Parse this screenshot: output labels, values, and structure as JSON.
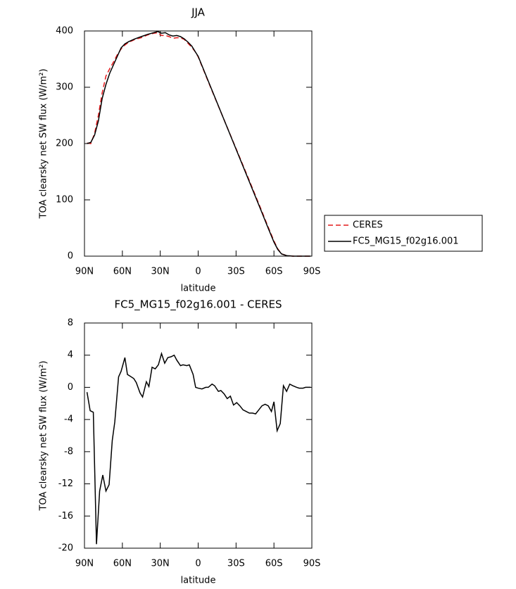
{
  "chart_data": [
    {
      "type": "line",
      "title": "JJA",
      "xlabel": "latitude",
      "ylabel": "TOA clearsky net SW flux (W/m²)",
      "x": [
        88,
        85,
        82,
        79,
        76,
        73,
        70,
        67,
        64,
        61,
        58,
        55,
        50,
        45,
        40,
        35,
        32,
        29,
        26,
        23,
        20,
        17,
        14,
        11,
        8,
        5,
        2,
        0,
        -10,
        -20,
        -30,
        -40,
        -50,
        -55,
        -60,
        -63,
        -66,
        -70,
        -75,
        -80,
        -85,
        -89
      ],
      "series": [
        {
          "name": "CERES",
          "color": "#e41a1c",
          "dash": "dashed",
          "values": [
            201,
            200,
            218,
            250,
            290,
            320,
            333,
            345,
            358,
            368,
            375,
            380,
            385,
            388,
            393,
            396,
            397,
            392,
            392,
            390,
            387,
            388,
            388,
            385,
            378,
            371,
            362,
            354,
            299,
            245,
            191,
            137,
            82,
            54,
            27,
            13,
            4,
            1,
            0,
            0,
            0,
            0
          ]
        },
        {
          "name": "FC5_MG15_f02g16.001",
          "color": "#000000",
          "dash": "solid",
          "values": [
            200,
            202,
            215,
            240,
            280,
            305,
            325,
            340,
            355,
            370,
            377,
            381,
            386,
            390,
            394,
            397,
            399,
            396,
            397,
            393,
            391,
            392,
            390,
            386,
            380,
            373,
            362,
            355,
            300,
            245,
            190,
            135,
            80,
            52,
            25,
            12,
            4,
            1,
            0,
            0,
            0,
            0
          ]
        }
      ],
      "xlim": [
        90,
        -90
      ],
      "xticks": [
        {
          "value": 90,
          "label": "90N"
        },
        {
          "value": 60,
          "label": "60N"
        },
        {
          "value": 30,
          "label": "30N"
        },
        0,
        {
          "value": -30,
          "label": "30S"
        },
        {
          "value": -60,
          "label": "60S"
        },
        {
          "value": -90,
          "label": "90S"
        }
      ],
      "ylim": [
        0,
        400
      ],
      "yticks": [
        0,
        100,
        200,
        300,
        400
      ],
      "legend": "right"
    },
    {
      "type": "line",
      "title": "FC5_MG15_f02g16.001 - CERES",
      "xlabel": "latitude",
      "ylabel": "TOA clearsky net SW flux (W/m²)",
      "x": [
        88,
        85.5,
        83,
        80.5,
        78,
        75.5,
        73,
        70.5,
        68,
        66,
        63,
        61,
        58,
        56,
        54,
        51,
        49,
        46,
        44,
        41,
        39,
        36.5,
        34,
        31.5,
        29,
        26.5,
        24,
        21.5,
        19,
        17,
        14,
        12,
        9,
        7,
        4,
        2,
        0,
        -3,
        -6,
        -8,
        -11,
        -13,
        -16,
        -18,
        -20.5,
        -23,
        -25.5,
        -28,
        -30.5,
        -33,
        -35.5,
        -38,
        -40.5,
        -43,
        -45.5,
        -48,
        -50.5,
        -53,
        -55.5,
        -58,
        -60,
        -62.5,
        -65,
        -67.5,
        -70,
        -72.5,
        -75,
        -78,
        -80,
        -83,
        -85,
        -89
      ],
      "series": [
        {
          "color": "#000000",
          "dash": "solid",
          "values": [
            -0.6,
            -2.9,
            -3.1,
            -19.5,
            -12.9,
            -10.9,
            -12.9,
            -12.1,
            -6.6,
            -4.3,
            1.3,
            2.0,
            3.7,
            1.6,
            1.4,
            1.1,
            0.6,
            -0.7,
            -1.2,
            0.7,
            0.1,
            2.5,
            2.3,
            2.8,
            4.2,
            3.0,
            3.7,
            3.8,
            4.0,
            3.4,
            2.7,
            2.8,
            2.7,
            2.8,
            1.6,
            0.0,
            -0.1,
            -0.2,
            0.0,
            0.0,
            0.4,
            0.2,
            -0.5,
            -0.4,
            -0.8,
            -1.4,
            -1.1,
            -2.2,
            -1.9,
            -2.3,
            -2.8,
            -3.0,
            -3.2,
            -3.2,
            -3.3,
            -2.8,
            -2.3,
            -2.1,
            -2.3,
            -3.0,
            -1.8,
            -5.4,
            -4.5,
            0.2,
            -0.5,
            0.4,
            0.2,
            0.0,
            -0.1,
            -0.1,
            0.0,
            0.0
          ]
        }
      ],
      "xlim": [
        90,
        -90
      ],
      "xticks": [
        {
          "value": 90,
          "label": "90N"
        },
        {
          "value": 60,
          "label": "60N"
        },
        {
          "value": 30,
          "label": "30N"
        },
        0,
        {
          "value": -30,
          "label": "30S"
        },
        {
          "value": -60,
          "label": "60S"
        },
        {
          "value": -90,
          "label": "90S"
        }
      ],
      "ylim": [
        -20,
        8
      ],
      "yticks": [
        -20,
        -16,
        -12,
        -8,
        -4,
        0,
        4,
        8
      ]
    }
  ]
}
